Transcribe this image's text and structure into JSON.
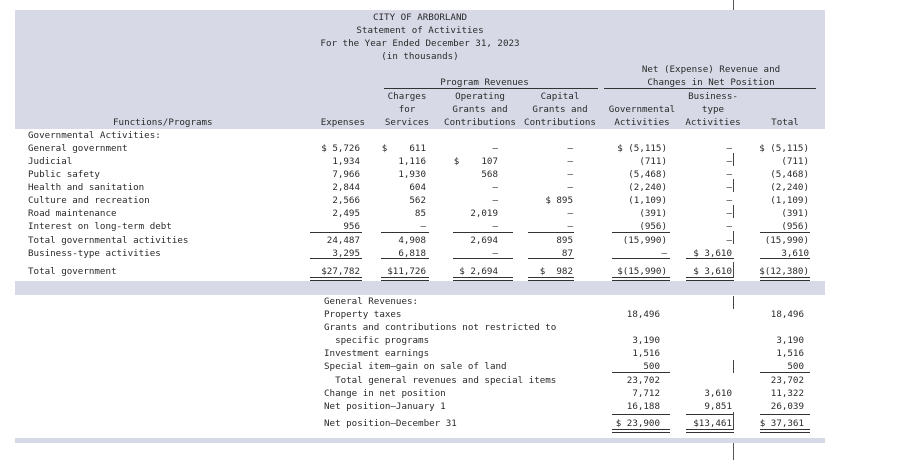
{
  "header": {
    "title_lines": [
      "CITY OF ARBORLAND",
      "Statement of Activities",
      "For the Year Ended December 31, 2023",
      "(in thousands)"
    ],
    "net_group": [
      "Net (Expense) Revenue and",
      "Changes in Net Position"
    ],
    "program_group": "Program Revenues",
    "business_top": "Business-",
    "columns": {
      "functions": "Functions/Programs",
      "expenses": "Expenses",
      "charges": [
        "Charges",
        "for",
        "Services"
      ],
      "operating": [
        "Operating",
        "Grants and",
        "Contributions"
      ],
      "capital": [
        "Capital",
        "Grants and",
        "Contributions"
      ],
      "governmental": [
        "Governmental",
        "Activities"
      ],
      "business": [
        "type",
        "Activities"
      ],
      "total": "Total"
    }
  },
  "governmental_heading": "Governmental Activities:",
  "rows": [
    {
      "label": "General government",
      "expenses": "$ 5,726",
      "charges": "$    611",
      "operating": "–",
      "capital": "–",
      "gov": "$ (5,115)",
      "bus": "–",
      "total": "$ (5,115)"
    },
    {
      "label": "Judicial",
      "expenses": "1,934",
      "charges": "1,116",
      "operating": "$    107",
      "capital": "–",
      "gov": "(711)",
      "bus": "–",
      "total": "(711)"
    },
    {
      "label": "Public safety",
      "expenses": "7,966",
      "charges": "1,930",
      "operating": "568",
      "capital": "–",
      "gov": "(5,468)",
      "bus": "–",
      "total": "(5,468)"
    },
    {
      "label": "Health and sanitation",
      "expenses": "2,844",
      "charges": "604",
      "operating": "–",
      "capital": "–",
      "gov": "(2,240)",
      "bus": "–",
      "total": "(2,240)"
    },
    {
      "label": "Culture and recreation",
      "expenses": "2,566",
      "charges": "562",
      "operating": "–",
      "capital": "$ 895",
      "gov": "(1,109)",
      "bus": "–",
      "total": "(1,109)"
    },
    {
      "label": "Road maintenance",
      "expenses": "2,495",
      "charges": "85",
      "operating": "2,019",
      "capital": "–",
      "gov": "(391)",
      "bus": "–",
      "total": "(391)"
    },
    {
      "label": "Interest on long-term debt",
      "expenses": "956",
      "charges": "–",
      "operating": "–",
      "capital": "–",
      "gov": "(956)",
      "bus": "–",
      "total": "(956)"
    },
    {
      "label": "Total governmental activities",
      "expenses": "24,487",
      "charges": "4,908",
      "operating": "2,694",
      "capital": "895",
      "gov": "(15,990)",
      "bus": "–",
      "total": "(15,990)"
    },
    {
      "label": "Business-type activities",
      "expenses": "3,295",
      "charges": "6,818",
      "operating": "–",
      "capital": "87",
      "gov": "–",
      "bus": "$ 3,610",
      "total": "3,610"
    },
    {
      "label": "Total government",
      "expenses": "$27,782",
      "charges": "$11,726",
      "operating": "$ 2,694",
      "capital": "$  982",
      "gov": "$(15,990)",
      "bus": "$ 3,610",
      "total": "$(12,380)"
    }
  ],
  "general": {
    "heading": "General Revenues:",
    "rows": [
      {
        "label": "Property taxes",
        "gov": "18,496",
        "bus": "",
        "total": "18,496"
      },
      {
        "label": "Grants and contributions not restricted to",
        "gov": "",
        "bus": "",
        "total": ""
      },
      {
        "label": "  specific programs",
        "gov": "3,190",
        "bus": "",
        "total": "3,190"
      },
      {
        "label": "Investment earnings",
        "gov": "1,516",
        "bus": "",
        "total": "1,516"
      },
      {
        "label": "Special item—gain on sale of land",
        "gov": "500",
        "bus": "",
        "total": "500"
      },
      {
        "label": "  Total general revenues and special items",
        "gov": "23,702",
        "bus": "",
        "total": "23,702"
      },
      {
        "label": "Change in net position",
        "gov": "7,712",
        "bus": "3,610",
        "total": "11,322"
      },
      {
        "label": "Net position—January 1",
        "gov": "16,188",
        "bus": "9,851",
        "total": "26,039"
      },
      {
        "label": "Net position—December 31",
        "gov": "$ 23,900",
        "bus": "$13,461",
        "total": "$ 37,361"
      }
    ]
  }
}
